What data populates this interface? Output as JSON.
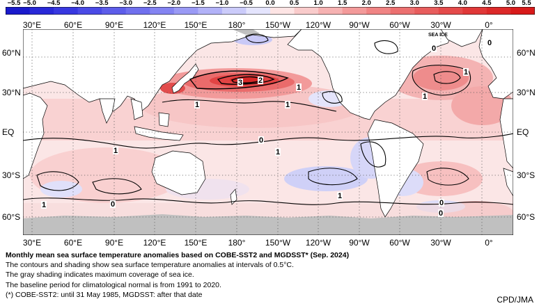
{
  "colorbar": {
    "labels": [
      "−5.5",
      "−5.0",
      "−4.5",
      "−4.0",
      "−3.5",
      "−3.0",
      "−2.5",
      "−2.0",
      "−1.5",
      "−1.0",
      "−0.5",
      "0.0",
      "0.5",
      "1.0",
      "1.5",
      "2.0",
      "2.5",
      "3.0",
      "3.5",
      "4.0",
      "4.5",
      "5.0",
      "5.5"
    ],
    "colors": [
      "#1a1acc",
      "#2929d8",
      "#3838e0",
      "#4a4ae6",
      "#5d5dea",
      "#7070ee",
      "#8484f2",
      "#9a9af5",
      "#b2b2f8",
      "#cbcbfa",
      "#e4e4fd",
      "#fde4e4",
      "#f9cbcb",
      "#f6b2b2",
      "#f39a9a",
      "#f08484",
      "#ec7070",
      "#e85d5d",
      "#e44a4a",
      "#e03838",
      "#dc2929",
      "#d81a1a"
    ]
  },
  "map": {
    "lon_labels_top": [
      "30°E",
      "60°E",
      "90°E",
      "120°E",
      "150°E",
      "180°",
      "150°W",
      "120°W",
      "90°W",
      "60°W",
      "30°W",
      "0°"
    ],
    "lon_labels_bottom": [
      "30°E",
      "60°E",
      "90°E",
      "120°E",
      "150°E",
      "180°",
      "150°W",
      "120°W",
      "90°W",
      "60°W",
      "30°W",
      "0°"
    ],
    "lat_labels_left": [
      "60°N",
      "30°N",
      "EQ",
      "30°S",
      "60°S"
    ],
    "lat_labels_right": [
      "60°N",
      "30°N",
      "EQ",
      "30°S",
      "60°S"
    ],
    "land_color": "#ffffff",
    "sea_ice_color": "#c0c0c0",
    "contour_color": "#000000",
    "sea_ice_tag": "SEA ICE",
    "contour_labels": [
      "0",
      "0",
      "1",
      "1",
      "1",
      "0",
      "1",
      "1",
      "0",
      "0",
      "1",
      "0",
      "3",
      "2",
      "1",
      "1",
      "1"
    ]
  },
  "caption": {
    "title": "Monthly mean sea surface temperature anomalies based on COBE-SST2 and MGDSST* (Sep. 2024)",
    "lines": [
      "The contours and shading show sea surface temperature anomalies at intervals of 0.5°C.",
      "The gray shading indicates maximum coverage of sea ice.",
      "The baseline period for climatological normal is from 1991 to 2020.",
      "(*) COBE-SST2: until 31 May 1985, MGDSST: after that date"
    ]
  },
  "credit": "CPD/JMA"
}
